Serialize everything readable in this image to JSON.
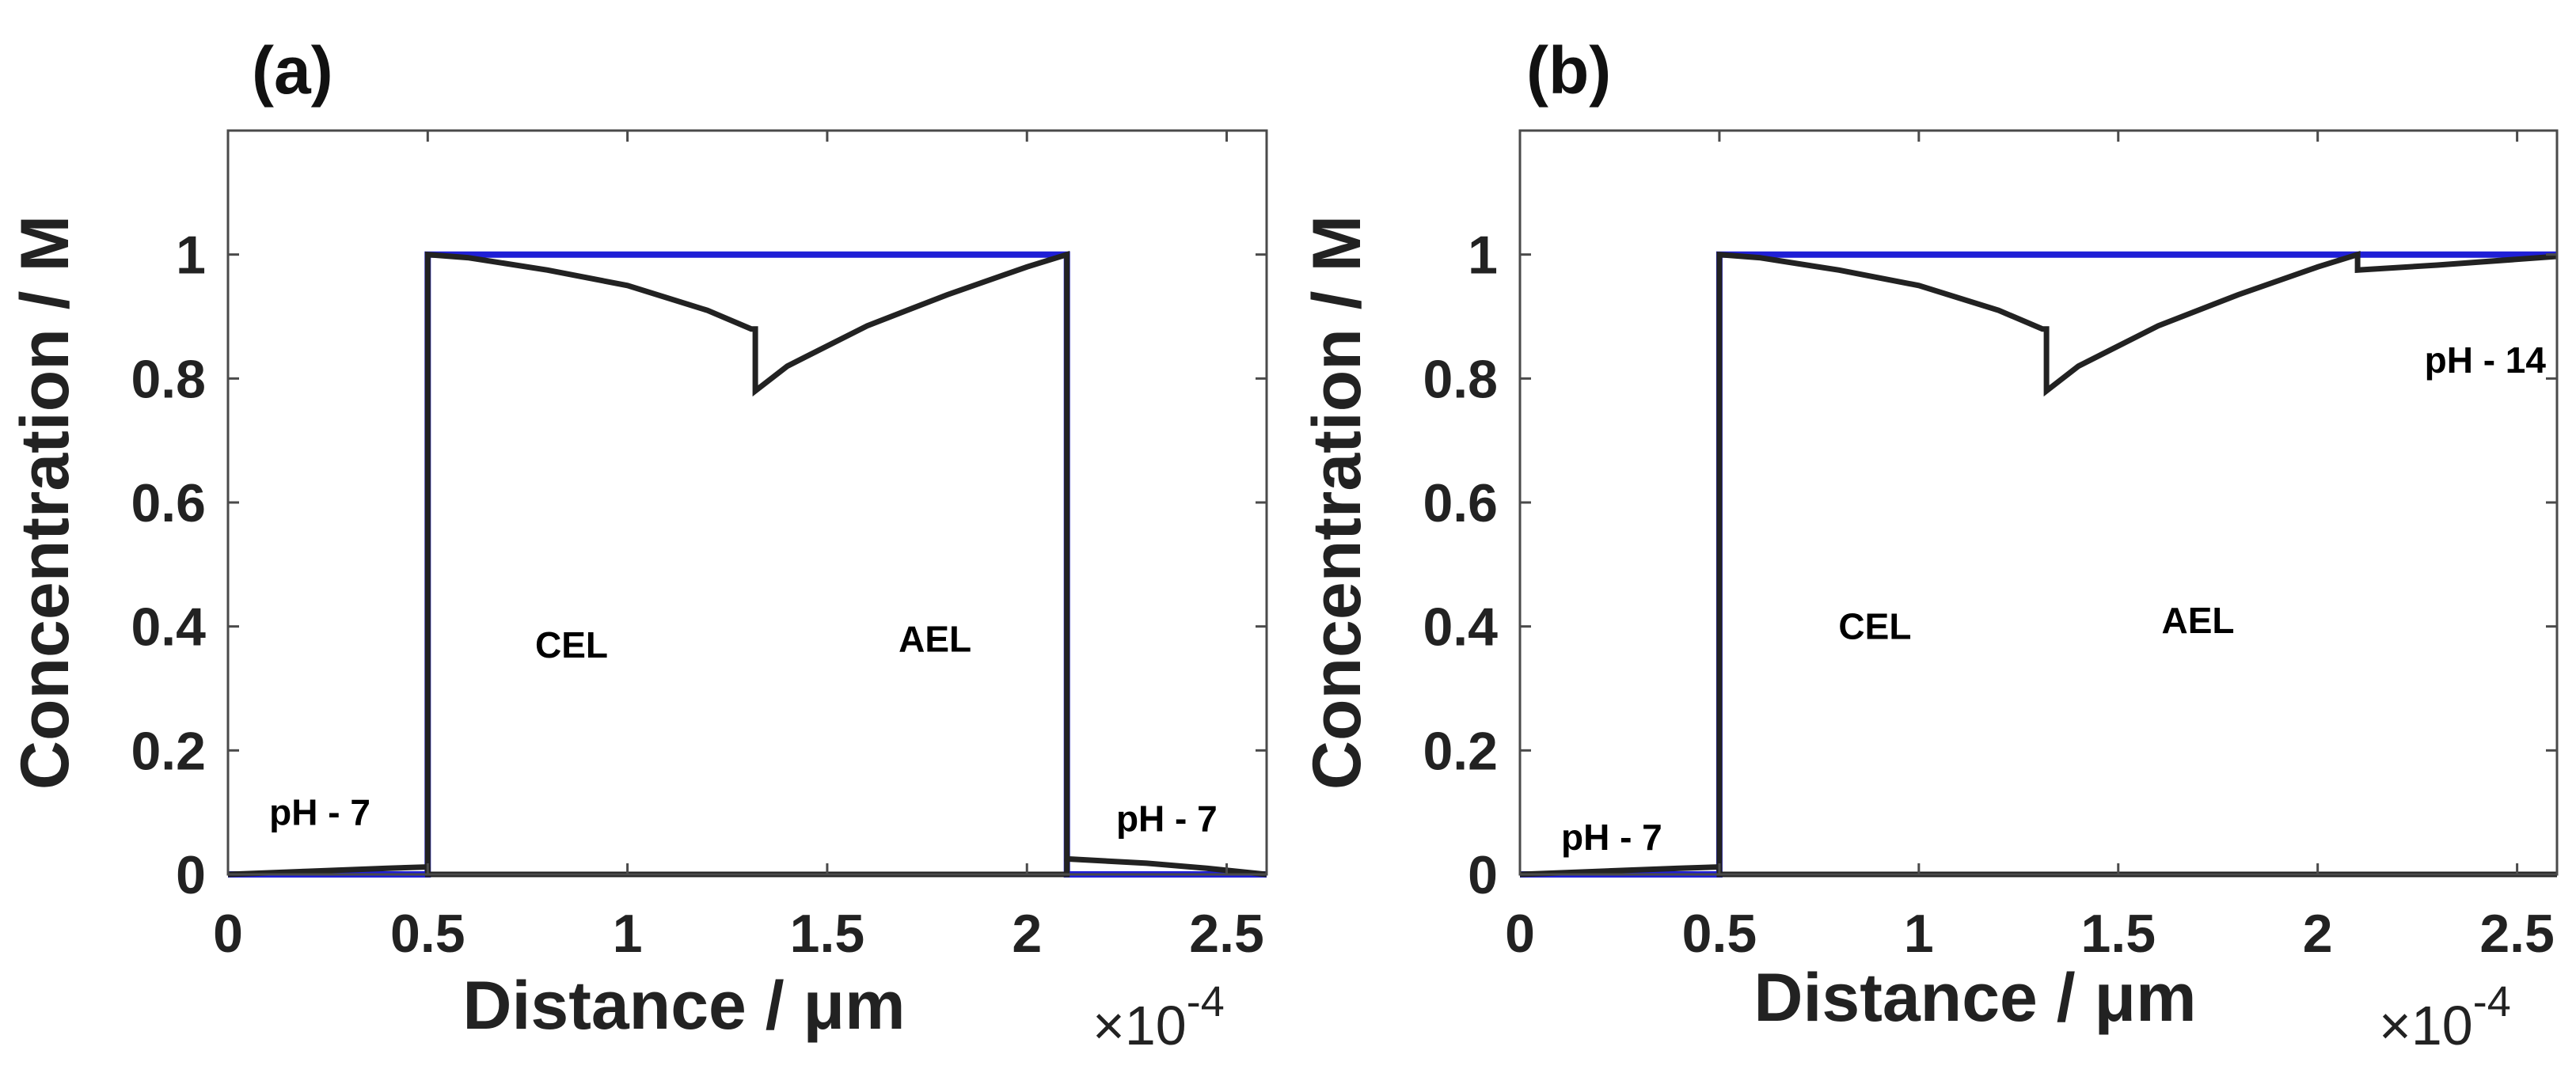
{
  "chart_data": [
    {
      "type": "line",
      "panel_label": "(a)",
      "xlabel": "Distance /  μm",
      "x_exponent": "×10",
      "x_exponent_power": "-4",
      "ylabel": "Concentration / M",
      "xlim": [
        0,
        2.6
      ],
      "ylim": [
        0,
        1.2
      ],
      "xticks": [
        0,
        0.5,
        1,
        1.5,
        2,
        2.5
      ],
      "xtick_labels": [
        "0",
        "0.5",
        "1",
        "1.5",
        "2",
        "2.5"
      ],
      "yticks": [
        0,
        0.2,
        0.4,
        0.6,
        0.8,
        1
      ],
      "ytick_labels": [
        "0",
        "0.2",
        "0.4",
        "0.6",
        "0.8",
        "1"
      ],
      "annotations": [
        {
          "text": "pH - 7",
          "x": 0.23,
          "y": 0.1
        },
        {
          "text": "CEL",
          "x": 0.86,
          "y": 0.37
        },
        {
          "text": "AEL",
          "x": 1.77,
          "y": 0.38
        },
        {
          "text": "pH - 7",
          "x": 2.35,
          "y": 0.09
        }
      ],
      "series": [
        {
          "name": "blue",
          "color": "#1f1fd6",
          "x": [
            0,
            0.5,
            0.5,
            2.1,
            2.1,
            2.6
          ],
          "y": [
            0,
            0,
            1,
            1,
            0,
            0
          ]
        },
        {
          "name": "black",
          "color": "#222222",
          "x": [
            0,
            0.2,
            0.4,
            0.5,
            0.5,
            0.6,
            0.8,
            1.0,
            1.2,
            1.31,
            1.32,
            1.32,
            1.4,
            1.6,
            1.8,
            2.0,
            2.1,
            2.1,
            2.3,
            2.45,
            2.6
          ],
          "y": [
            0,
            0.005,
            0.01,
            0.012,
            1,
            0.995,
            0.975,
            0.95,
            0.91,
            0.88,
            0.88,
            0.78,
            0.82,
            0.885,
            0.935,
            0.98,
            1,
            0.025,
            0.018,
            0.01,
            0
          ]
        },
        {
          "name": "black-2",
          "color": "#222222",
          "x": [
            0.5,
            0.5,
            1.32,
            1.32,
            2.1,
            2.1
          ],
          "y": [
            0.012,
            0,
            0,
            0,
            0,
            0.025
          ]
        }
      ]
    },
    {
      "type": "line",
      "panel_label": "(b)",
      "xlabel": "Distance /  μm",
      "x_exponent": "×10",
      "x_exponent_power": "-4",
      "ylabel": "Concentration / M",
      "xlim": [
        0,
        2.6
      ],
      "ylim": [
        0,
        1.2
      ],
      "xticks": [
        0,
        0.5,
        1,
        1.5,
        2,
        2.5
      ],
      "xtick_labels": [
        "0",
        "0.5",
        "1",
        "1.5",
        "2",
        "2.5"
      ],
      "yticks": [
        0,
        0.2,
        0.4,
        0.6,
        0.8,
        1
      ],
      "ytick_labels": [
        "0",
        "0.2",
        "0.4",
        "0.6",
        "0.8",
        "1"
      ],
      "annotations": [
        {
          "text": "pH - 7",
          "x": 0.23,
          "y": 0.06
        },
        {
          "text": "CEL",
          "x": 0.89,
          "y": 0.4
        },
        {
          "text": "AEL",
          "x": 1.7,
          "y": 0.41
        },
        {
          "text": "pH - 14",
          "x": 2.42,
          "y": 0.83
        }
      ],
      "series": [
        {
          "name": "blue",
          "color": "#1f1fd6",
          "x": [
            0,
            0.5,
            0.5,
            2.6
          ],
          "y": [
            0,
            0,
            1,
            1
          ]
        },
        {
          "name": "black",
          "color": "#222222",
          "x": [
            0,
            0.2,
            0.4,
            0.5,
            0.5,
            0.6,
            0.8,
            1.0,
            1.2,
            1.31,
            1.32,
            1.32,
            1.4,
            1.6,
            1.8,
            2.0,
            2.1,
            2.1,
            2.3,
            2.6
          ],
          "y": [
            0,
            0.005,
            0.01,
            0.012,
            1,
            0.995,
            0.975,
            0.95,
            0.91,
            0.88,
            0.88,
            0.78,
            0.82,
            0.885,
            0.935,
            0.98,
            1,
            0.975,
            0.983,
            0.997
          ]
        },
        {
          "name": "black-2",
          "color": "#222222",
          "x": [
            0.5,
            0.5,
            1.32,
            1.32,
            2.6
          ],
          "y": [
            0.012,
            0,
            0,
            0,
            0
          ]
        }
      ]
    }
  ]
}
